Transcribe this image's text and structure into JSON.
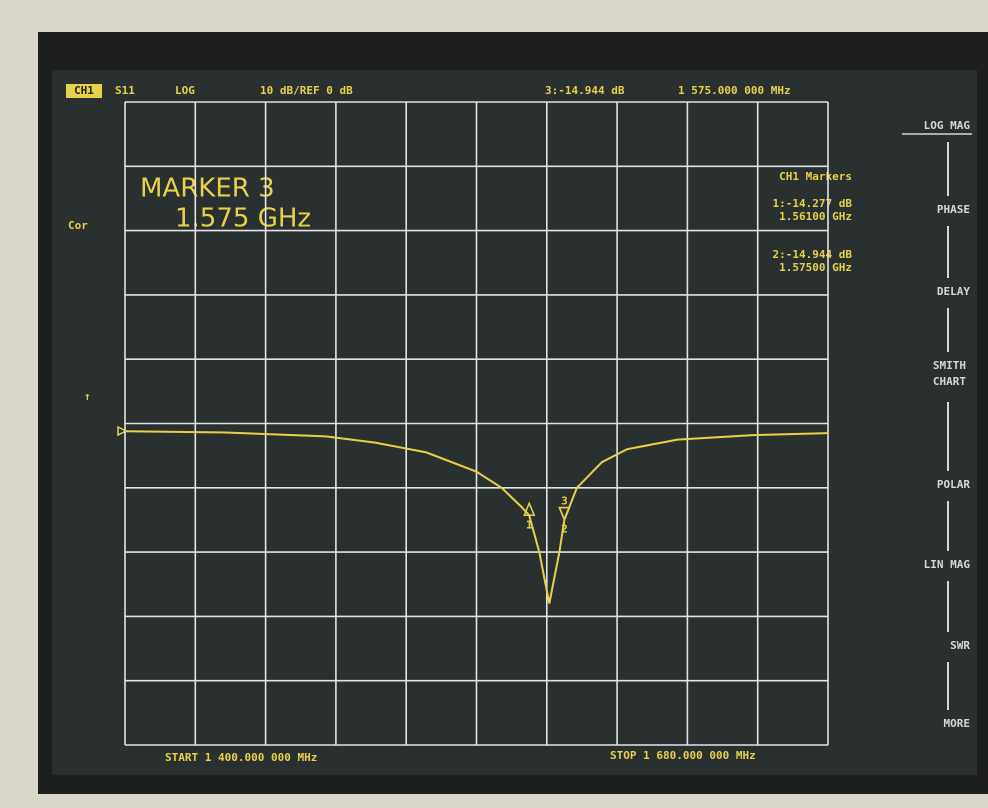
{
  "header": {
    "channel": "CH1",
    "parameter": "S11",
    "format": "LOG",
    "scale": "10 dB/REF 0 dB",
    "active_marker_value": "3:-14.944 dB",
    "active_marker_freq": "1 575.000 000 MHz"
  },
  "marker_display": {
    "title": "MARKER 3",
    "freq": "1.575 GHz"
  },
  "marker_table": {
    "title": "CH1 Markers",
    "entries": [
      {
        "value": "1:-14.277 dB",
        "freq": "1.56100 GHz"
      },
      {
        "value": "2:-14.944 dB",
        "freq": "1.57500 GHz"
      }
    ]
  },
  "status": {
    "correction": "Cor",
    "arrow": "↑"
  },
  "sweep": {
    "start": "START 1 400.000 000 MHz",
    "stop": "STOP 1 680.000 000 MHz"
  },
  "softkeys": [
    "LOG MAG",
    "PHASE",
    "DELAY",
    "SMITH CHART",
    "POLAR",
    "LIN MAG",
    "SWR",
    "MORE"
  ],
  "chart_data": {
    "type": "line",
    "color": "#e6d24a",
    "grid": true,
    "x": [
      1400,
      1440,
      1480,
      1500,
      1520,
      1540,
      1550,
      1558,
      1561,
      1565,
      1569,
      1573,
      1575,
      1580,
      1590,
      1600,
      1620,
      1650,
      1680
    ],
    "values": [
      -1.2,
      -1.4,
      -2,
      -3,
      -4.5,
      -7.5,
      -10,
      -13,
      -14.277,
      -20,
      -28,
      -20,
      -14.944,
      -10,
      -6,
      -4,
      -2.5,
      -1.8,
      -1.5
    ],
    "xlim": [
      1400,
      1680
    ],
    "xticks": [
      1400,
      1428,
      1456,
      1484,
      1512,
      1540,
      1568,
      1596,
      1624,
      1652,
      1680
    ],
    "ylim": [
      -50,
      50
    ],
    "yticks": [
      -50,
      -40,
      -30,
      -20,
      -10,
      0,
      10,
      20,
      30,
      40,
      50
    ],
    "markers": [
      {
        "label": "1",
        "x": 1561,
        "value": -14.277
      },
      {
        "label": "2",
        "x": 1575,
        "value": -14.944
      },
      {
        "label": "3",
        "x": 1575,
        "value": -14.944
      }
    ]
  }
}
